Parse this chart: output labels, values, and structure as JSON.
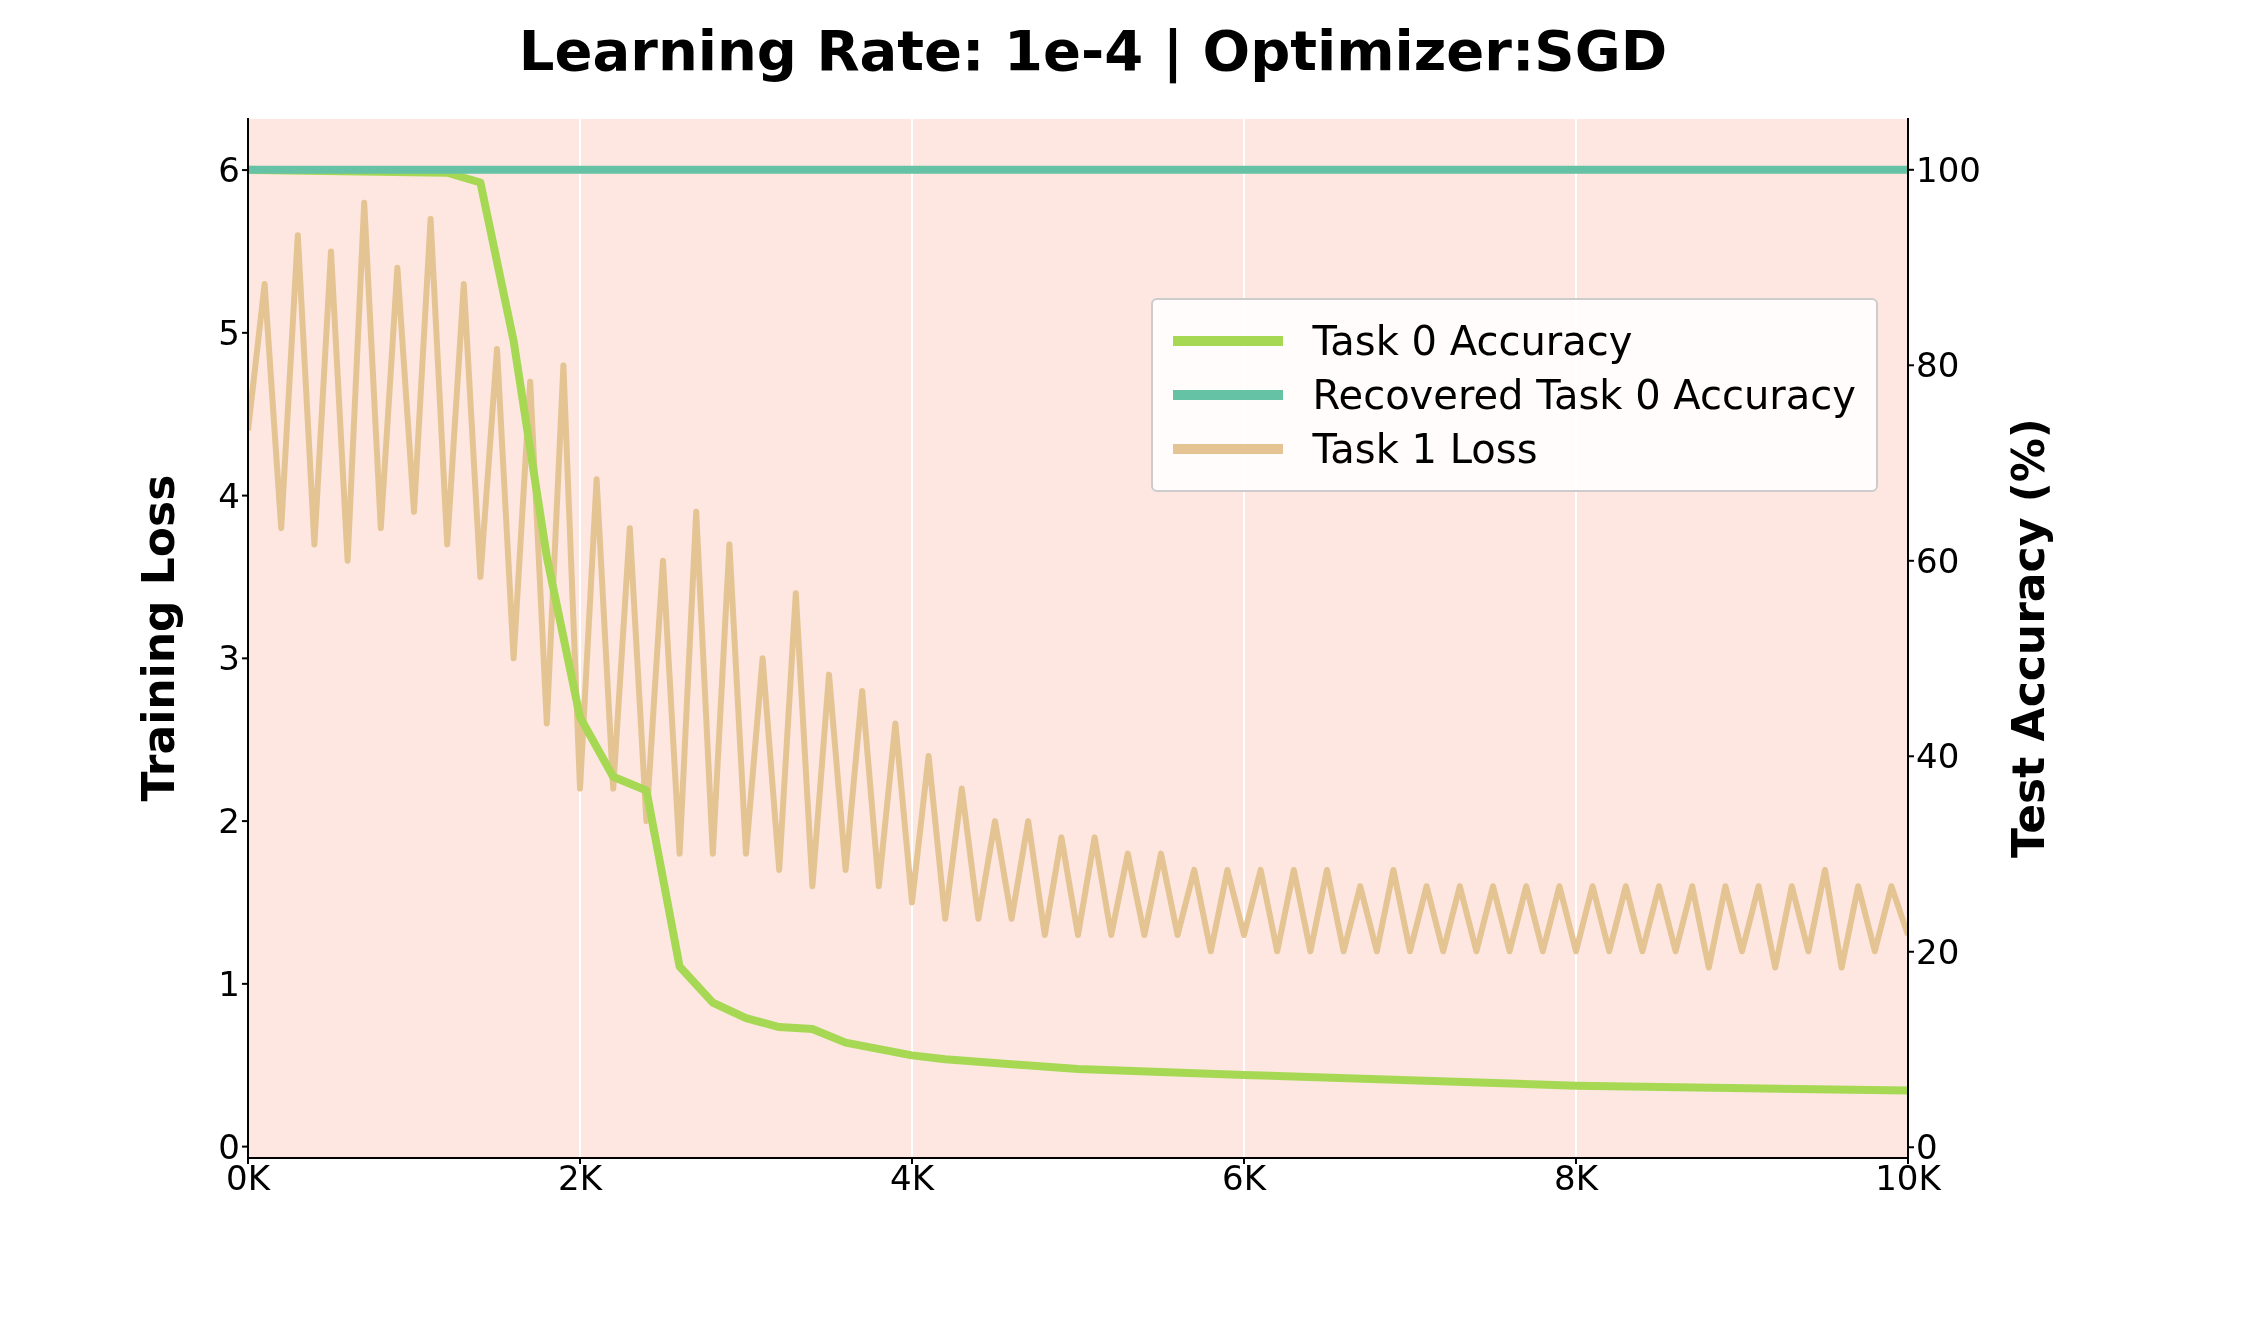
{
  "chart_data": {
    "type": "line",
    "title": "Learning Rate: 1e-4 | Optimizer:SGD",
    "ylabel": "Training Loss",
    "y2label": "Test Accuracy (%)",
    "xlim": [
      0,
      10000
    ],
    "xticks": [
      {
        "value": 0,
        "label": "0K"
      },
      {
        "value": 2000,
        "label": "2K"
      },
      {
        "value": 4000,
        "label": "4K"
      },
      {
        "value": 6000,
        "label": "6K"
      },
      {
        "value": 8000,
        "label": "8K"
      },
      {
        "value": 10000,
        "label": "10K"
      }
    ],
    "ylim": [
      -0.07,
      6.32
    ],
    "yticks": [
      0,
      1,
      2,
      3,
      4,
      5,
      6
    ],
    "y2lim": [
      -1.1,
      105.3
    ],
    "y2ticks": [
      0,
      20,
      40,
      60,
      80,
      100
    ],
    "grid": true,
    "legend": "right",
    "line_style": "solid",
    "series": [
      {
        "name": "Task 0 Accuracy",
        "color": "#a6d854",
        "axis": "y2",
        "x": [
          0,
          1200,
          1400,
          1600,
          1800,
          2000,
          2200,
          2400,
          2600,
          2800,
          3000,
          3200,
          3400,
          3600,
          4000,
          4200,
          5000,
          6000,
          8000,
          10000
        ],
        "values": [
          100,
          99.7,
          98.7,
          82.5,
          60.4,
          44,
          37.9,
          36.5,
          18.5,
          14.8,
          13.2,
          12.3,
          12.1,
          10.7,
          9.4,
          9,
          8,
          7.4,
          6.3,
          5.8
        ]
      },
      {
        "name": "Recovered Task 0 Accuracy",
        "color": "#66c2a5",
        "axis": "y2",
        "x": [
          0,
          10000
        ],
        "values": [
          100,
          100
        ]
      },
      {
        "name": "Task 1 Loss",
        "color": "#e5c494",
        "axis": "y",
        "x": [
          0,
          100,
          200,
          300,
          400,
          500,
          600,
          700,
          800,
          900,
          1000,
          1100,
          1200,
          1300,
          1400,
          1500,
          1600,
          1700,
          1800,
          1900,
          2000,
          2100,
          2200,
          2300,
          2400,
          2500,
          2600,
          2700,
          2800,
          2900,
          3000,
          3100,
          3200,
          3300,
          3400,
          3500,
          3600,
          3700,
          3800,
          3900,
          4000,
          4100,
          4200,
          4300,
          4400,
          4500,
          4600,
          4700,
          4800,
          4900,
          5000,
          5100,
          5200,
          5300,
          5400,
          5500,
          5600,
          5700,
          5800,
          5900,
          6000,
          6100,
          6200,
          6300,
          6400,
          6500,
          6600,
          6700,
          6800,
          6900,
          7000,
          7100,
          7200,
          7300,
          7400,
          7500,
          7600,
          7700,
          7800,
          7900,
          8000,
          8100,
          8200,
          8300,
          8400,
          8500,
          8600,
          8700,
          8800,
          8900,
          9000,
          9100,
          9200,
          9300,
          9400,
          9500,
          9600,
          9700,
          9800,
          9900,
          10000
        ],
        "values": [
          4.4,
          5.3,
          3.8,
          5.6,
          3.7,
          5.5,
          3.6,
          5.8,
          3.8,
          5.4,
          3.9,
          5.7,
          3.7,
          5.3,
          3.5,
          4.9,
          3.0,
          4.7,
          2.6,
          4.8,
          2.2,
          4.1,
          2.2,
          3.8,
          2.0,
          3.6,
          1.8,
          3.9,
          1.8,
          3.7,
          1.8,
          3.0,
          1.7,
          3.4,
          1.6,
          2.9,
          1.7,
          2.8,
          1.6,
          2.6,
          1.5,
          2.4,
          1.4,
          2.2,
          1.4,
          2.0,
          1.4,
          2.0,
          1.3,
          1.9,
          1.3,
          1.9,
          1.3,
          1.8,
          1.3,
          1.8,
          1.3,
          1.7,
          1.2,
          1.7,
          1.3,
          1.7,
          1.2,
          1.7,
          1.2,
          1.7,
          1.2,
          1.6,
          1.2,
          1.7,
          1.2,
          1.6,
          1.2,
          1.6,
          1.2,
          1.6,
          1.2,
          1.6,
          1.2,
          1.6,
          1.2,
          1.6,
          1.2,
          1.6,
          1.2,
          1.6,
          1.2,
          1.6,
          1.1,
          1.6,
          1.2,
          1.6,
          1.1,
          1.6,
          1.2,
          1.7,
          1.1,
          1.6,
          1.2,
          1.6,
          1.3
        ]
      }
    ]
  }
}
